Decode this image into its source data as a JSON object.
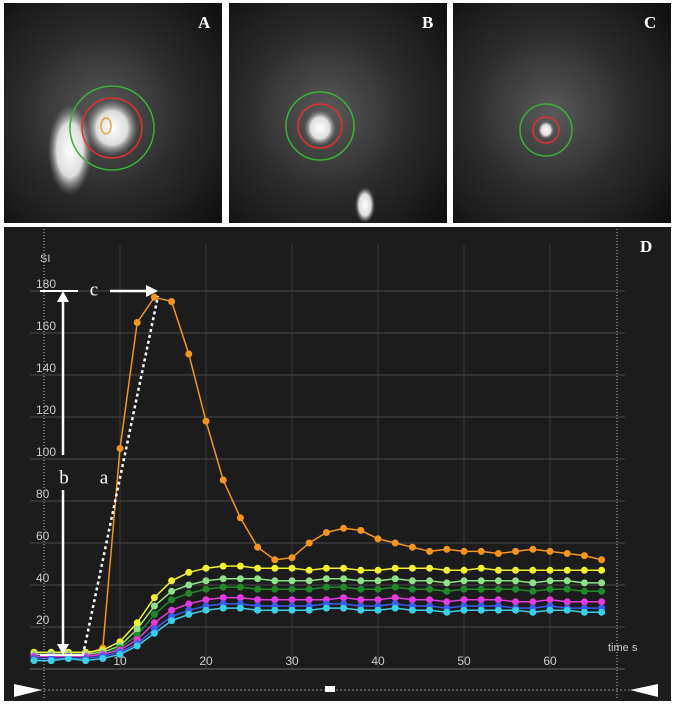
{
  "images": {
    "labels": [
      "A",
      "B",
      "C"
    ]
  },
  "chart_data": {
    "type": "line",
    "label": "D",
    "y_label": "SI",
    "x_label": "time s",
    "annotations": [
      "a",
      "b",
      "c"
    ],
    "xlim": [
      -1,
      73
    ],
    "ylim": [
      0,
      205
    ],
    "xticks": [
      10,
      20,
      30,
      40,
      50,
      60
    ],
    "yticks": [
      20,
      40,
      60,
      80,
      100,
      120,
      140,
      160,
      180
    ],
    "grid": true,
    "x": [
      0,
      2,
      4,
      6,
      8,
      10,
      12,
      14,
      16,
      18,
      20,
      22,
      24,
      26,
      28,
      30,
      32,
      34,
      36,
      38,
      40,
      42,
      44,
      46,
      48,
      50,
      52,
      54,
      56,
      58,
      60,
      62,
      64,
      66
    ],
    "series": [
      {
        "color": "#f5941e",
        "values": [
          7,
          7,
          7,
          7,
          10,
          105,
          165,
          177,
          175,
          150,
          118,
          90,
          72,
          58,
          52,
          53,
          60,
          65,
          67,
          66,
          62,
          60,
          58,
          56,
          57,
          56,
          56,
          55,
          56,
          57,
          56,
          55,
          54,
          52
        ]
      },
      {
        "color": "#f2f230",
        "values": [
          8,
          8,
          8,
          8,
          9,
          13,
          22,
          34,
          42,
          46,
          48,
          49,
          49,
          48,
          48,
          48,
          47,
          48,
          48,
          47,
          47,
          48,
          48,
          48,
          47,
          47,
          48,
          47,
          47,
          47,
          47,
          47,
          47,
          47
        ]
      },
      {
        "color": "#8fe08a",
        "values": [
          7,
          7,
          7,
          7,
          8,
          11,
          19,
          30,
          37,
          40,
          42,
          43,
          43,
          43,
          42,
          42,
          42,
          43,
          43,
          42,
          42,
          43,
          42,
          42,
          41,
          42,
          42,
          42,
          42,
          41,
          42,
          42,
          41,
          41
        ]
      },
      {
        "color": "#1f8a2a",
        "values": [
          6,
          6,
          6,
          6,
          7,
          10,
          16,
          26,
          33,
          36,
          38,
          39,
          39,
          38,
          38,
          38,
          38,
          39,
          39,
          38,
          38,
          39,
          38,
          38,
          37,
          38,
          38,
          38,
          38,
          37,
          38,
          38,
          37,
          37
        ]
      },
      {
        "color": "#e23be0",
        "values": [
          6,
          6,
          6,
          6,
          7,
          9,
          14,
          22,
          28,
          31,
          33,
          34,
          34,
          33,
          33,
          33,
          33,
          33,
          34,
          33,
          33,
          34,
          33,
          33,
          32,
          33,
          33,
          33,
          32,
          32,
          33,
          32,
          32,
          32
        ]
      },
      {
        "color": "#3a5cf0",
        "values": [
          5,
          5,
          5,
          5,
          6,
          8,
          12,
          19,
          25,
          28,
          30,
          31,
          31,
          30,
          30,
          30,
          30,
          31,
          31,
          30,
          30,
          31,
          30,
          30,
          29,
          30,
          30,
          30,
          29,
          29,
          30,
          29,
          29,
          29
        ]
      },
      {
        "color": "#3ad0e8",
        "values": [
          4,
          4,
          5,
          4,
          5,
          7,
          11,
          17,
          23,
          26,
          28,
          29,
          29,
          28,
          28,
          28,
          28,
          29,
          29,
          28,
          28,
          29,
          28,
          28,
          27,
          28,
          28,
          28,
          28,
          27,
          28,
          28,
          27,
          27
        ]
      }
    ]
  }
}
